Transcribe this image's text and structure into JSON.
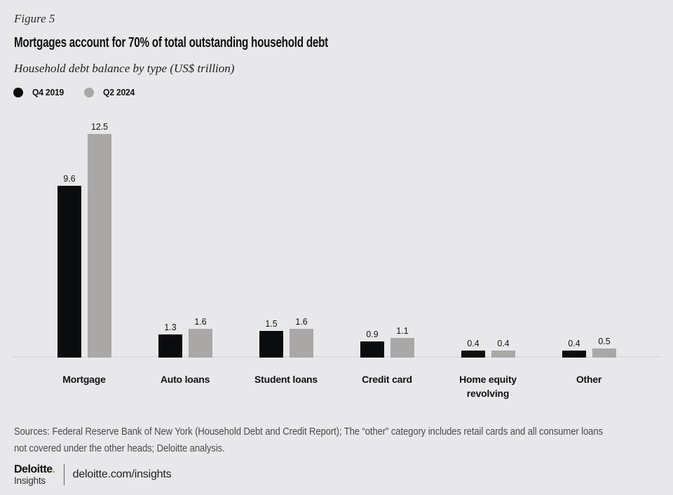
{
  "header": {
    "figure_label": "Figure 5"
  },
  "chart_data": {
    "type": "bar",
    "title": "Mortgages account for 70% of total outstanding household debt",
    "subtitle": "Household debt balance by type (US$ trillion)",
    "categories": [
      "Mortgage",
      "Auto loans",
      "Student loans",
      "Credit card",
      "Home equity\nrevolving",
      "Other"
    ],
    "series": [
      {
        "name": "Q4 2019",
        "color": "#0b0c0e",
        "values": [
          9.6,
          1.3,
          1.5,
          0.9,
          0.4,
          0.4
        ]
      },
      {
        "name": "Q2 2024",
        "color": "#a9a8a6",
        "values": [
          12.5,
          1.6,
          1.6,
          1.1,
          0.4,
          0.5
        ]
      }
    ],
    "ylim": [
      0,
      13
    ],
    "grid": false,
    "legend_position": "top-left",
    "value_labels": true
  },
  "footer": {
    "sources_line1": "Sources: Federal Reserve Bank of New York (Household Debt and Credit Report); The “other” category includes retail cards and all consumer loans",
    "sources_line2": "not covered under the other heads; Deloitte analysis.",
    "brand_name": "Deloitte",
    "brand_dot": ".",
    "brand_sub": "Insights",
    "url": "deloitte.com/insights"
  },
  "colors": {
    "background": "#e8e8ea",
    "bar_dark": "#0b0c0e",
    "bar_gray": "#a9a8a6",
    "accent_green": "#86bc25",
    "baseline": "#dcdcde"
  }
}
